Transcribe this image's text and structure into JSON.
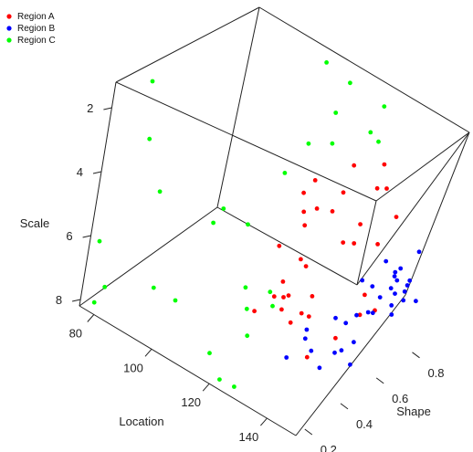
{
  "chart_data": {
    "type": "scatter",
    "subtype": "3d-box",
    "legend": {
      "placement": "top-left",
      "entries": [
        {
          "name": "Region A",
          "color": "#ff0000"
        },
        {
          "name": "Region B",
          "color": "#0000ff"
        },
        {
          "name": "Region C",
          "color": "#00ff00"
        }
      ]
    },
    "axes": {
      "location": {
        "label": "Location",
        "range": [
          75,
          150
        ],
        "ticks": [
          "80",
          "100",
          "120",
          "140"
        ]
      },
      "shape": {
        "label": "Shape",
        "range": [
          0.15,
          0.92
        ],
        "ticks": [
          "0.2",
          "0.4",
          "0.6",
          "0.8"
        ]
      },
      "scale": {
        "label": "Scale",
        "range": [
          1.2,
          8.2
        ],
        "ticks": [
          "2",
          "4",
          "6",
          "8"
        ]
      }
    },
    "grid": false,
    "series": [
      {
        "name": "Region A",
        "color": "#ff0000",
        "points": [
          {
            "x": 117,
            "y": 0.9,
            "z": 4.54
          },
          {
            "x": 110,
            "y": 0.81,
            "z": 5.02
          },
          {
            "x": 111,
            "y": 0.73,
            "z": 5.04
          },
          {
            "x": 118,
            "y": 0.84,
            "z": 5.09
          },
          {
            "x": 128,
            "y": 0.85,
            "z": 4.46
          },
          {
            "x": 126,
            "y": 0.91,
            "z": 4.06
          },
          {
            "x": 116,
            "y": 0.65,
            "z": 5.04
          },
          {
            "x": 121,
            "y": 0.63,
            "z": 4.59
          },
          {
            "x": 130,
            "y": 0.87,
            "z": 4.44
          },
          {
            "x": 125,
            "y": 0.65,
            "z": 4.54
          },
          {
            "x": 120,
            "y": 0.59,
            "z": 5.01
          },
          {
            "x": 129,
            "y": 0.67,
            "z": 5.38
          },
          {
            "x": 131,
            "y": 0.72,
            "z": 4.9
          },
          {
            "x": 134,
            "y": 0.88,
            "z": 5.15
          },
          {
            "x": 133,
            "y": 0.66,
            "z": 5.15
          },
          {
            "x": 120,
            "y": 0.45,
            "z": 5.09
          },
          {
            "x": 127,
            "y": 0.46,
            "z": 5.17
          },
          {
            "x": 129,
            "y": 0.46,
            "z": 5.28
          },
          {
            "x": 139,
            "y": 0.69,
            "z": 4.97
          },
          {
            "x": 129,
            "y": 0.33,
            "z": 5.24
          },
          {
            "x": 131,
            "y": 0.31,
            "z": 5.54
          },
          {
            "x": 128,
            "y": 0.31,
            "z": 5.68
          },
          {
            "x": 130,
            "y": 0.36,
            "z": 5.74
          },
          {
            "x": 136,
            "y": 0.39,
            "z": 5.56
          },
          {
            "x": 137,
            "y": 0.32,
            "z": 5.76
          },
          {
            "x": 134,
            "y": 0.25,
            "z": 5.52
          },
          {
            "x": 127,
            "y": 0.22,
            "z": 5.83
          },
          {
            "x": 139,
            "y": 0.33,
            "z": 5.79
          },
          {
            "x": 145,
            "y": 0.54,
            "z": 5.63
          },
          {
            "x": 149,
            "y": 0.45,
            "z": 5.68
          },
          {
            "x": 149,
            "y": 0.54,
            "z": 5.9
          },
          {
            "x": 148,
            "y": 0.34,
            "z": 6.02
          },
          {
            "x": 139,
            "y": 0.22,
            "z": 5.54
          },
          {
            "x": 147,
            "y": 0.2,
            "z": 6.11
          }
        ]
      },
      {
        "name": "Region B",
        "color": "#0000ff",
        "points": [
          {
            "x": 140,
            "y": 0.74,
            "z": 5.65
          },
          {
            "x": 137,
            "y": 0.67,
            "z": 6.13
          },
          {
            "x": 142,
            "y": 0.8,
            "z": 6.01
          },
          {
            "x": 144,
            "y": 0.86,
            "z": 5.62
          },
          {
            "x": 139,
            "y": 0.7,
            "z": 6.33
          },
          {
            "x": 141,
            "y": 0.79,
            "z": 6.14
          },
          {
            "x": 141,
            "y": 0.79,
            "z": 6.27
          },
          {
            "x": 143,
            "y": 0.77,
            "z": 6.21
          },
          {
            "x": 144,
            "y": 0.83,
            "z": 6.4
          },
          {
            "x": 144,
            "y": 0.82,
            "z": 6.51
          },
          {
            "x": 142,
            "y": 0.76,
            "z": 6.47
          },
          {
            "x": 145,
            "y": 0.79,
            "z": 6.53
          },
          {
            "x": 144,
            "y": 0.75,
            "z": 6.49
          },
          {
            "x": 142,
            "y": 0.7,
            "z": 6.51
          },
          {
            "x": 146,
            "y": 0.77,
            "z": 6.67
          },
          {
            "x": 145,
            "y": 0.72,
            "z": 6.68
          },
          {
            "x": 149,
            "y": 0.79,
            "z": 6.61
          },
          {
            "x": 144,
            "y": 0.63,
            "z": 6.61
          },
          {
            "x": 142,
            "y": 0.57,
            "z": 6.55
          },
          {
            "x": 147,
            "y": 0.69,
            "z": 6.74
          },
          {
            "x": 142,
            "y": 0.64,
            "z": 6.74
          },
          {
            "x": 139,
            "y": 0.5,
            "z": 6.52
          },
          {
            "x": 141,
            "y": 0.53,
            "z": 6.69
          },
          {
            "x": 137,
            "y": 0.37,
            "z": 6.47
          },
          {
            "x": 137,
            "y": 0.37,
            "z": 6.75
          },
          {
            "x": 145,
            "y": 0.52,
            "z": 7.03
          },
          {
            "x": 144,
            "y": 0.47,
            "z": 7.14
          },
          {
            "x": 140,
            "y": 0.36,
            "z": 6.93
          },
          {
            "x": 143,
            "y": 0.45,
            "z": 7.19
          },
          {
            "x": 137,
            "y": 0.27,
            "z": 6.94
          },
          {
            "x": 143,
            "y": 0.37,
            "z": 7.34
          },
          {
            "x": 146,
            "y": 0.5,
            "z": 7.6
          }
        ]
      },
      {
        "name": "Region C",
        "color": "#00ff00",
        "points": [
          {
            "x": 78,
            "y": 0.32,
            "z": 1.69
          },
          {
            "x": 106,
            "y": 0.84,
            "z": 1.67
          },
          {
            "x": 116,
            "y": 0.81,
            "z": 1.65
          },
          {
            "x": 117,
            "y": 0.73,
            "z": 2.21
          },
          {
            "x": 123,
            "y": 0.91,
            "z": 2.41
          },
          {
            "x": 125,
            "y": 0.81,
            "z": 2.71
          },
          {
            "x": 84,
            "y": 0.24,
            "z": 2.85
          },
          {
            "x": 120,
            "y": 0.68,
            "z": 2.81
          },
          {
            "x": 126,
            "y": 0.85,
            "z": 3.11
          },
          {
            "x": 93,
            "y": 0.18,
            "z": 3.77
          },
          {
            "x": 111,
            "y": 0.71,
            "z": 3.42
          },
          {
            "x": 110,
            "y": 0.61,
            "z": 3.99
          },
          {
            "x": 104,
            "y": 0.38,
            "z": 4.51
          },
          {
            "x": 102,
            "y": 0.37,
            "z": 5.02
          },
          {
            "x": 108,
            "y": 0.47,
            "z": 5.15
          },
          {
            "x": 77,
            "y": 0.17,
            "z": 6.15
          },
          {
            "x": 97,
            "y": 0.16,
            "z": 6.48
          },
          {
            "x": 115,
            "y": 0.38,
            "z": 6.38
          },
          {
            "x": 118,
            "y": 0.35,
            "z": 6.77
          },
          {
            "x": 120,
            "y": 0.44,
            "z": 6.49
          },
          {
            "x": 123,
            "y": 0.41,
            "z": 6.65
          },
          {
            "x": 104,
            "y": 0.17,
            "z": 6.54
          },
          {
            "x": 123,
            "y": 0.28,
            "z": 7.06
          },
          {
            "x": 82,
            "y": 0.15,
            "z": 7.23
          },
          {
            "x": 118,
            "y": 0.16,
            "z": 7.39
          },
          {
            "x": 78,
            "y": 0.18,
            "z": 8.05
          },
          {
            "x": 122,
            "y": 0.17,
            "z": 8.04
          },
          {
            "x": 126,
            "y": 0.19,
            "z": 8.13
          }
        ]
      }
    ]
  }
}
